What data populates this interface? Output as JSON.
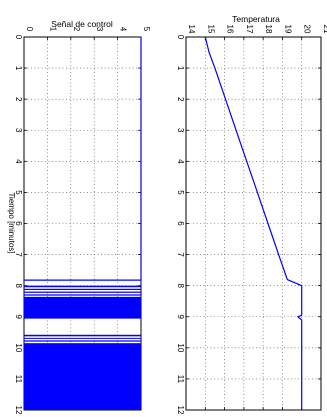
{
  "chart_data": [
    {
      "id": "control",
      "type": "line",
      "title": "Señal de control",
      "xlabel": "Tiempo [minutos]",
      "ylabel": "",
      "orientation": "rotated-90",
      "xlim": [
        0,
        12
      ],
      "ylim": [
        0,
        5
      ],
      "xticks": [
        "0",
        "1",
        "2",
        "3",
        "4",
        "5",
        "6",
        "7",
        "8",
        "9",
        "10",
        "11",
        "12"
      ],
      "yticks": [
        "0",
        "1",
        "2",
        "3",
        "4",
        "5"
      ],
      "grid": true,
      "color": "#0000ff",
      "segments": [
        {
          "x": [
            0,
            7.82
          ],
          "y": [
            5,
            5
          ]
        },
        {
          "x": [
            7.82,
            7.82
          ],
          "y": [
            5,
            0
          ]
        }
      ],
      "switching_blocks": [
        {
          "x_start": 8.0,
          "x_end": 8.05
        },
        {
          "x_start": 8.1,
          "x_end": 8.14
        },
        {
          "x_start": 8.19,
          "x_end": 8.23
        },
        {
          "x_start": 8.28,
          "x_end": 8.32
        },
        {
          "x_start": 8.36,
          "x_end": 9.06
        },
        {
          "x_start": 9.58,
          "x_end": 9.63
        },
        {
          "x_start": 9.68,
          "x_end": 9.71
        },
        {
          "x_start": 9.76,
          "x_end": 9.8
        },
        {
          "x_start": 9.85,
          "x_end": 12.0
        }
      ]
    },
    {
      "id": "temperature",
      "type": "line",
      "title": "Temperatura",
      "xlabel": "",
      "ylabel": "",
      "orientation": "rotated-90",
      "xlim": [
        0,
        12
      ],
      "ylim": [
        14,
        21
      ],
      "xticks": [
        "0",
        "1",
        "2",
        "3",
        "4",
        "5",
        "6",
        "7",
        "8",
        "9",
        "10",
        "11",
        "12"
      ],
      "yticks": [
        "14",
        "15",
        "16",
        "17",
        "18",
        "19",
        "20",
        "21"
      ],
      "grid": true,
      "color": "#0000ff",
      "x": [
        0,
        0.5,
        1,
        2,
        3,
        4,
        5,
        6,
        7,
        7.8,
        8.0,
        8.5,
        8.95,
        9.0,
        9.1,
        9.5,
        9.9,
        10.5,
        11,
        12
      ],
      "y": [
        15.0,
        15.2,
        15.5,
        16.05,
        16.6,
        17.15,
        17.7,
        18.25,
        18.8,
        19.25,
        20.0,
        20.0,
        20.0,
        19.8,
        20.0,
        20.0,
        20.0,
        20.0,
        20.0,
        20.0
      ]
    }
  ]
}
